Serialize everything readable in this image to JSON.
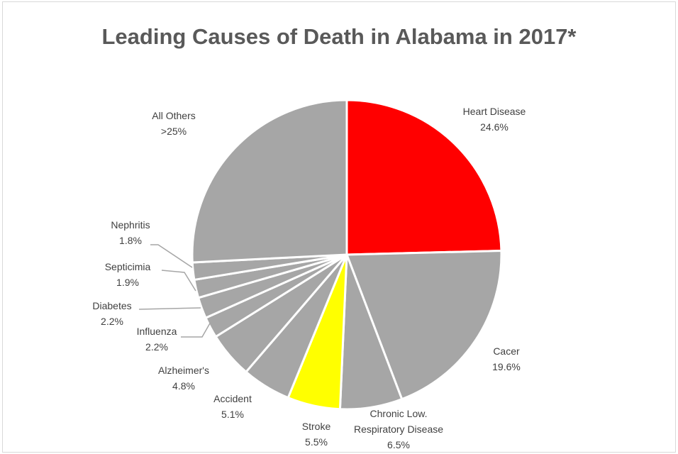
{
  "chart_data": {
    "type": "pie",
    "title": "Leading Causes of Death in Alabama in 2017*",
    "slices": [
      {
        "name": "Heart Disease",
        "value": 24.6,
        "label": "24.6%",
        "color": "#ff0000"
      },
      {
        "name": "Cacer",
        "value": 19.6,
        "label": "19.6%",
        "color": "#a6a6a6"
      },
      {
        "name": "Chronic Low. Respiratory Disease",
        "value": 6.5,
        "label": "6.5%",
        "color": "#a6a6a6"
      },
      {
        "name": "Stroke",
        "value": 5.5,
        "label": "5.5%",
        "color": "#ffff00"
      },
      {
        "name": "Accident",
        "value": 5.1,
        "label": "5.1%",
        "color": "#a6a6a6"
      },
      {
        "name": "Alzheimer's",
        "value": 4.8,
        "label": "4.8%",
        "color": "#a6a6a6"
      },
      {
        "name": "Influenza",
        "value": 2.2,
        "label": "2.2%",
        "color": "#a6a6a6"
      },
      {
        "name": "Diabetes",
        "value": 2.2,
        "label": "2.2%",
        "color": "#a6a6a6"
      },
      {
        "name": "Septicimia",
        "value": 1.9,
        "label": "1.9%",
        "color": "#a6a6a6"
      },
      {
        "name": "Nephritis",
        "value": 1.8,
        "label": "1.8%",
        "color": "#a6a6a6"
      },
      {
        "name": "All Others",
        "value": 25.8,
        "label": ">25%",
        "color": "#a6a6a6"
      }
    ]
  }
}
